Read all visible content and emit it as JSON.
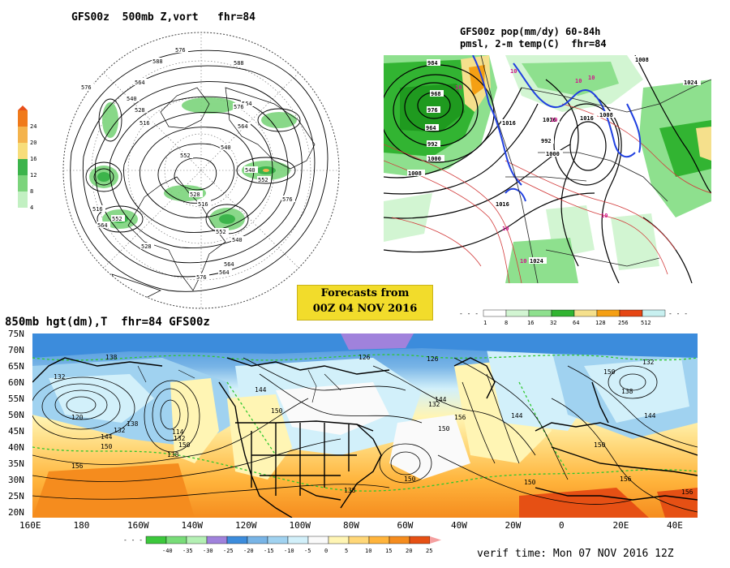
{
  "panel_500mb": {
    "title": "GFS00z  500mb Z,vort   fhr=84",
    "colorbar": {
      "ticks": [
        "24",
        "20",
        "16",
        "12",
        "8",
        "4"
      ],
      "colors": [
        "#f07a1a",
        "#f4b34c",
        "#f7dd7a",
        "#3cb44b",
        "#7cd47c",
        "#c2f0c2"
      ]
    },
    "contour_labels": [
      "576",
      "588",
      "576",
      "564",
      "540",
      "528",
      "516",
      "552",
      "564",
      "540",
      "576",
      "564",
      "552",
      "540",
      "528",
      "516",
      "552",
      "540",
      "564",
      "576",
      "564",
      "552",
      "516",
      "528",
      "564",
      "576",
      "588"
    ]
  },
  "panel_pop": {
    "title_line1": "GFS00z pop(mm/dy) 60-84h",
    "title_line2": "pmsl, 2-m temp(C)  fhr=84",
    "contour_labels": [
      "984",
      "968",
      "976",
      "964",
      "992",
      "1000",
      "1008",
      "1016",
      "1016",
      "1016",
      "1008",
      "1024",
      "1008",
      "1000",
      "992",
      "1016",
      "1024"
    ],
    "temp_labels": [
      "10",
      "10",
      "10",
      "10",
      "10",
      "10",
      "10",
      "10"
    ],
    "colorbar": {
      "ticks": [
        "1",
        "8",
        "16",
        "32",
        "64",
        "128",
        "256",
        "512"
      ],
      "colors": [
        "#ffffff",
        "#d2f5d2",
        "#8ee08e",
        "#32b432",
        "#f5e08c",
        "#f5a014",
        "#e64614",
        "#c8f0f0"
      ]
    }
  },
  "banner": {
    "line1": "Forecasts from",
    "line2": "00Z 04 NOV 2016"
  },
  "panel_850mb": {
    "title": "850mb hgt(dm),T  fhr=84 GFS00z",
    "lat_labels": [
      "75N",
      "70N",
      "65N",
      "60N",
      "55N",
      "50N",
      "45N",
      "40N",
      "35N",
      "30N",
      "25N",
      "20N"
    ],
    "lon_labels": [
      "160E",
      "180",
      "160W",
      "140W",
      "120W",
      "100W",
      "80W",
      "60W",
      "40W",
      "20W",
      "0",
      "20E",
      "40E"
    ],
    "height_labels": [
      "132",
      "138",
      "126",
      "120",
      "144",
      "150",
      "156",
      "132",
      "138",
      "150",
      "114",
      "132",
      "138",
      "144",
      "150",
      "126",
      "132",
      "144",
      "150",
      "138",
      "156",
      "144",
      "150",
      "138",
      "132",
      "144",
      "150",
      "156",
      "150",
      "156",
      "150"
    ],
    "colorbar": {
      "ticks": [
        "-40",
        "-35",
        "-30",
        "-25",
        "-20",
        "-15",
        "-10",
        "-5",
        "0",
        "5",
        "10",
        "15",
        "20",
        "25"
      ],
      "colors": [
        "#3cc83c",
        "#78dc78",
        "#b4f0b4",
        "#a082dc",
        "#3c8cdc",
        "#78b4e6",
        "#a0d2f0",
        "#d2f0fa",
        "#fafafa",
        "#fff5b4",
        "#ffd778",
        "#ffb43c",
        "#f58c1e",
        "#e65014"
      ]
    }
  },
  "verif_time": "verif time: Mon 07 NOV 2016 12Z"
}
